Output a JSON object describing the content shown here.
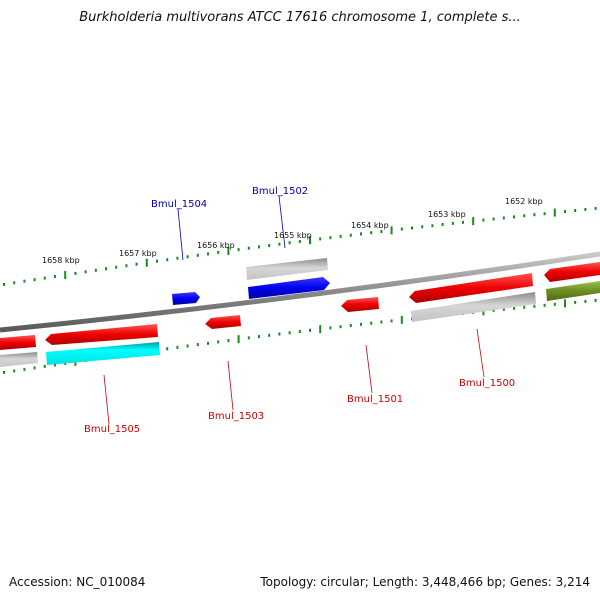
{
  "title": "Burkholderia multivorans ATCC 17616 chromosome 1, complete s...",
  "footer": {
    "accession": "Accession: NC_010084",
    "summary": "Topology: circular; Length: 3,448,466 bp; Genes: 3,214"
  },
  "ticks": [
    {
      "label": "1658 kbp"
    },
    {
      "label": "1657 kbp"
    },
    {
      "label": "1656 kbp"
    },
    {
      "label": "1655 kbp"
    },
    {
      "label": "1654 kbp"
    },
    {
      "label": "1653 kbp"
    },
    {
      "label": "1652 kbp"
    }
  ],
  "genes": [
    {
      "label": "Bmul_1504",
      "strand": "forward",
      "color": "#0000cc"
    },
    {
      "label": "Bmul_1502",
      "strand": "forward",
      "color": "#0000cc"
    },
    {
      "label": "Bmul_1505",
      "strand": "reverse",
      "color": "#cc0000"
    },
    {
      "label": "Bmul_1503",
      "strand": "reverse",
      "color": "#cc0000"
    },
    {
      "label": "Bmul_1501",
      "strand": "reverse",
      "color": "#cc0000"
    },
    {
      "label": "Bmul_1500",
      "strand": "reverse",
      "color": "#cc0000"
    }
  ],
  "colors": {
    "forward_cds": "#0000ff",
    "reverse_cds": "#ff0000",
    "rna_or_other": "#00ffff",
    "homolog_grey": "#b0b0b0",
    "olive": "#6b8e23",
    "backbone": "#808080",
    "tick_green": "#1a8a1a"
  }
}
